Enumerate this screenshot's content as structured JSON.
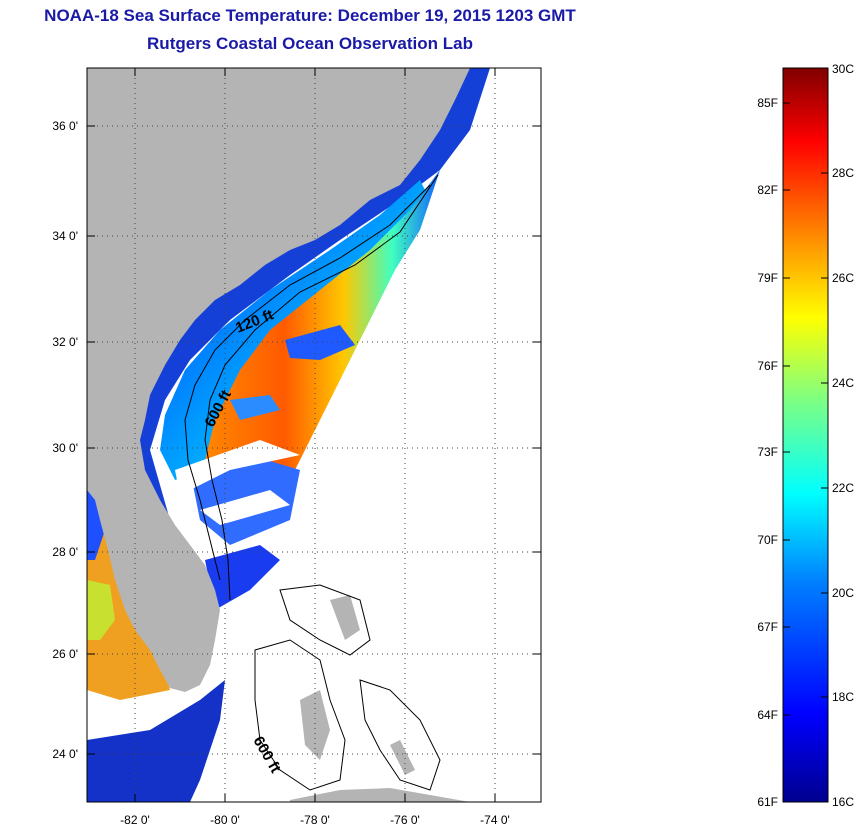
{
  "title": {
    "line1": "NOAA-18 Sea Surface Temperature:  December 19, 2015 1203 GMT",
    "line2": "Rutgers Coastal Ocean Observation Lab"
  },
  "map": {
    "lat_labels": [
      "36 0'",
      "34 0'",
      "32 0'",
      "30 0'",
      "28 0'",
      "26 0'",
      "24 0'"
    ],
    "lon_labels": [
      "-82 0'",
      "-80 0'",
      "-78 0'",
      "-76 0'",
      "-74 0'"
    ],
    "contour_labels": [
      "120 ft",
      "600 ft",
      "600 ft"
    ],
    "colors": {
      "land": "#b4b4b4",
      "background": "#ffffff",
      "contour": "#000000"
    }
  },
  "colorbar": {
    "celsius_labels": [
      "30C",
      "28C",
      "26C",
      "24C",
      "22C",
      "20C",
      "18C",
      "16C"
    ],
    "fahrenheit_labels": [
      "85F",
      "82F",
      "79F",
      "76F",
      "73F",
      "70F",
      "67F",
      "64F",
      "61F"
    ],
    "range_c": [
      16,
      30
    ],
    "gradient": [
      "#00008f",
      "#0000ff",
      "#0080ff",
      "#00ffff",
      "#80ff80",
      "#ffff00",
      "#ff8000",
      "#ff0000",
      "#800000"
    ]
  }
}
